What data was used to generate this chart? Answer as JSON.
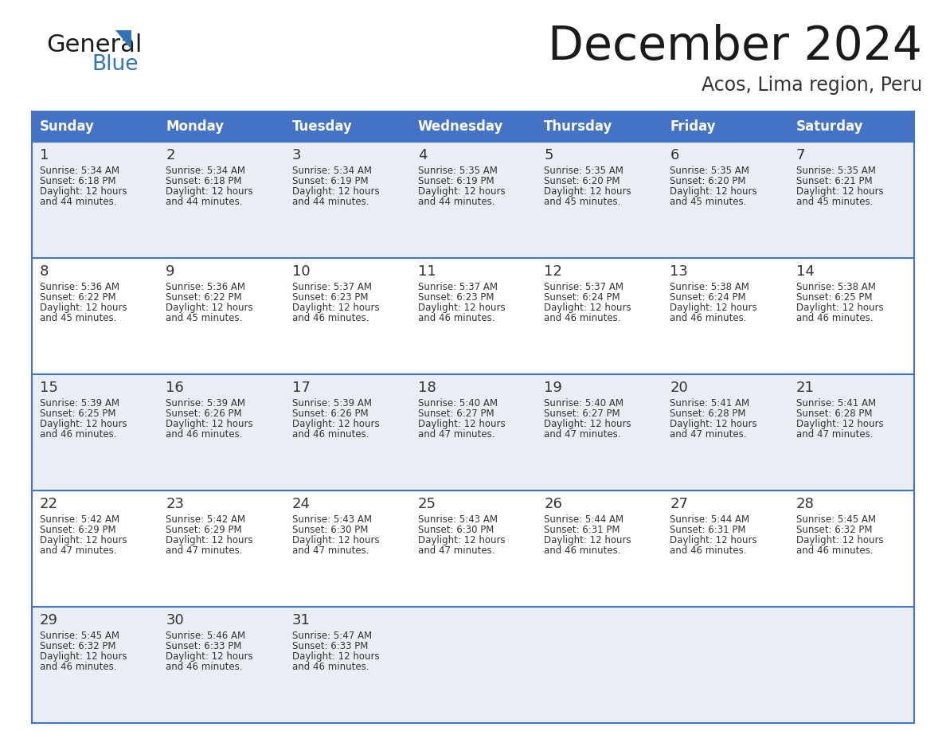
{
  "title": "December 2024",
  "subtitle": "Acos, Lima region, Peru",
  "header_color": "#4472C4",
  "header_text_color": "#FFFFFF",
  "day_names": [
    "Sunday",
    "Monday",
    "Tuesday",
    "Wednesday",
    "Thursday",
    "Friday",
    "Saturday"
  ],
  "bg_color": "#FFFFFF",
  "cell_bg_even": "#FFFFFF",
  "cell_bg_odd": "#E8EEF4",
  "border_color": "#4472C4",
  "text_color": "#333333",
  "days": [
    {
      "day": 1,
      "col": 0,
      "row": 0,
      "sunrise": "5:34 AM",
      "sunset": "6:18 PM",
      "daylight": "12 hours and 44 minutes"
    },
    {
      "day": 2,
      "col": 1,
      "row": 0,
      "sunrise": "5:34 AM",
      "sunset": "6:18 PM",
      "daylight": "12 hours and 44 minutes"
    },
    {
      "day": 3,
      "col": 2,
      "row": 0,
      "sunrise": "5:34 AM",
      "sunset": "6:19 PM",
      "daylight": "12 hours and 44 minutes"
    },
    {
      "day": 4,
      "col": 3,
      "row": 0,
      "sunrise": "5:35 AM",
      "sunset": "6:19 PM",
      "daylight": "12 hours and 44 minutes"
    },
    {
      "day": 5,
      "col": 4,
      "row": 0,
      "sunrise": "5:35 AM",
      "sunset": "6:20 PM",
      "daylight": "12 hours and 45 minutes"
    },
    {
      "day": 6,
      "col": 5,
      "row": 0,
      "sunrise": "5:35 AM",
      "sunset": "6:20 PM",
      "daylight": "12 hours and 45 minutes"
    },
    {
      "day": 7,
      "col": 6,
      "row": 0,
      "sunrise": "5:35 AM",
      "sunset": "6:21 PM",
      "daylight": "12 hours and 45 minutes"
    },
    {
      "day": 8,
      "col": 0,
      "row": 1,
      "sunrise": "5:36 AM",
      "sunset": "6:22 PM",
      "daylight": "12 hours and 45 minutes"
    },
    {
      "day": 9,
      "col": 1,
      "row": 1,
      "sunrise": "5:36 AM",
      "sunset": "6:22 PM",
      "daylight": "12 hours and 45 minutes"
    },
    {
      "day": 10,
      "col": 2,
      "row": 1,
      "sunrise": "5:37 AM",
      "sunset": "6:23 PM",
      "daylight": "12 hours and 46 minutes"
    },
    {
      "day": 11,
      "col": 3,
      "row": 1,
      "sunrise": "5:37 AM",
      "sunset": "6:23 PM",
      "daylight": "12 hours and 46 minutes"
    },
    {
      "day": 12,
      "col": 4,
      "row": 1,
      "sunrise": "5:37 AM",
      "sunset": "6:24 PM",
      "daylight": "12 hours and 46 minutes"
    },
    {
      "day": 13,
      "col": 5,
      "row": 1,
      "sunrise": "5:38 AM",
      "sunset": "6:24 PM",
      "daylight": "12 hours and 46 minutes"
    },
    {
      "day": 14,
      "col": 6,
      "row": 1,
      "sunrise": "5:38 AM",
      "sunset": "6:25 PM",
      "daylight": "12 hours and 46 minutes"
    },
    {
      "day": 15,
      "col": 0,
      "row": 2,
      "sunrise": "5:39 AM",
      "sunset": "6:25 PM",
      "daylight": "12 hours and 46 minutes"
    },
    {
      "day": 16,
      "col": 1,
      "row": 2,
      "sunrise": "5:39 AM",
      "sunset": "6:26 PM",
      "daylight": "12 hours and 46 minutes"
    },
    {
      "day": 17,
      "col": 2,
      "row": 2,
      "sunrise": "5:39 AM",
      "sunset": "6:26 PM",
      "daylight": "12 hours and 46 minutes"
    },
    {
      "day": 18,
      "col": 3,
      "row": 2,
      "sunrise": "5:40 AM",
      "sunset": "6:27 PM",
      "daylight": "12 hours and 47 minutes"
    },
    {
      "day": 19,
      "col": 4,
      "row": 2,
      "sunrise": "5:40 AM",
      "sunset": "6:27 PM",
      "daylight": "12 hours and 47 minutes"
    },
    {
      "day": 20,
      "col": 5,
      "row": 2,
      "sunrise": "5:41 AM",
      "sunset": "6:28 PM",
      "daylight": "12 hours and 47 minutes"
    },
    {
      "day": 21,
      "col": 6,
      "row": 2,
      "sunrise": "5:41 AM",
      "sunset": "6:28 PM",
      "daylight": "12 hours and 47 minutes"
    },
    {
      "day": 22,
      "col": 0,
      "row": 3,
      "sunrise": "5:42 AM",
      "sunset": "6:29 PM",
      "daylight": "12 hours and 47 minutes"
    },
    {
      "day": 23,
      "col": 1,
      "row": 3,
      "sunrise": "5:42 AM",
      "sunset": "6:29 PM",
      "daylight": "12 hours and 47 minutes"
    },
    {
      "day": 24,
      "col": 2,
      "row": 3,
      "sunrise": "5:43 AM",
      "sunset": "6:30 PM",
      "daylight": "12 hours and 47 minutes"
    },
    {
      "day": 25,
      "col": 3,
      "row": 3,
      "sunrise": "5:43 AM",
      "sunset": "6:30 PM",
      "daylight": "12 hours and 47 minutes"
    },
    {
      "day": 26,
      "col": 4,
      "row": 3,
      "sunrise": "5:44 AM",
      "sunset": "6:31 PM",
      "daylight": "12 hours and 46 minutes"
    },
    {
      "day": 27,
      "col": 5,
      "row": 3,
      "sunrise": "5:44 AM",
      "sunset": "6:31 PM",
      "daylight": "12 hours and 46 minutes"
    },
    {
      "day": 28,
      "col": 6,
      "row": 3,
      "sunrise": "5:45 AM",
      "sunset": "6:32 PM",
      "daylight": "12 hours and 46 minutes"
    },
    {
      "day": 29,
      "col": 0,
      "row": 4,
      "sunrise": "5:45 AM",
      "sunset": "6:32 PM",
      "daylight": "12 hours and 46 minutes"
    },
    {
      "day": 30,
      "col": 1,
      "row": 4,
      "sunrise": "5:46 AM",
      "sunset": "6:33 PM",
      "daylight": "12 hours and 46 minutes"
    },
    {
      "day": 31,
      "col": 2,
      "row": 4,
      "sunrise": "5:47 AM",
      "sunset": "6:33 PM",
      "daylight": "12 hours and 46 minutes"
    }
  ]
}
